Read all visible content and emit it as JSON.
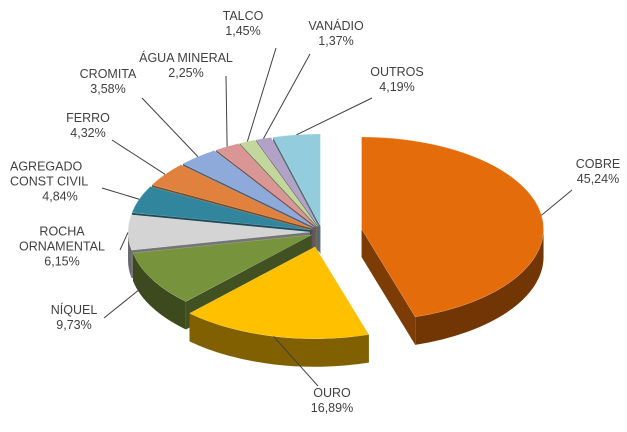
{
  "chart_data": {
    "type": "pie",
    "categories": [
      "COBRE",
      "OURO",
      "NÍQUEL",
      "ROCHA ORNAMENTAL",
      "AGREGADO CONST CIVIL",
      "FERRO",
      "CROMITA",
      "ÁGUA MINERAL",
      "TALCO",
      "VANÁDIO",
      "OUTROS"
    ],
    "values": [
      45.24,
      16.89,
      9.73,
      6.15,
      4.84,
      4.32,
      3.58,
      2.25,
      1.45,
      1.37,
      4.19
    ],
    "value_labels": [
      "45,24%",
      "16,89%",
      "9,73%",
      "6,15%",
      "4,84%",
      "4,32%",
      "3,58%",
      "2,25%",
      "1,45%",
      "1,37%",
      "4,19%"
    ],
    "colors": [
      "#e46c0a",
      "#ffc000",
      "#77933c",
      "#d4d4d4",
      "#31859c",
      "#e0823d",
      "#8eaadb",
      "#d99694",
      "#c3d69b",
      "#b3a2c7",
      "#93cddd"
    ]
  }
}
